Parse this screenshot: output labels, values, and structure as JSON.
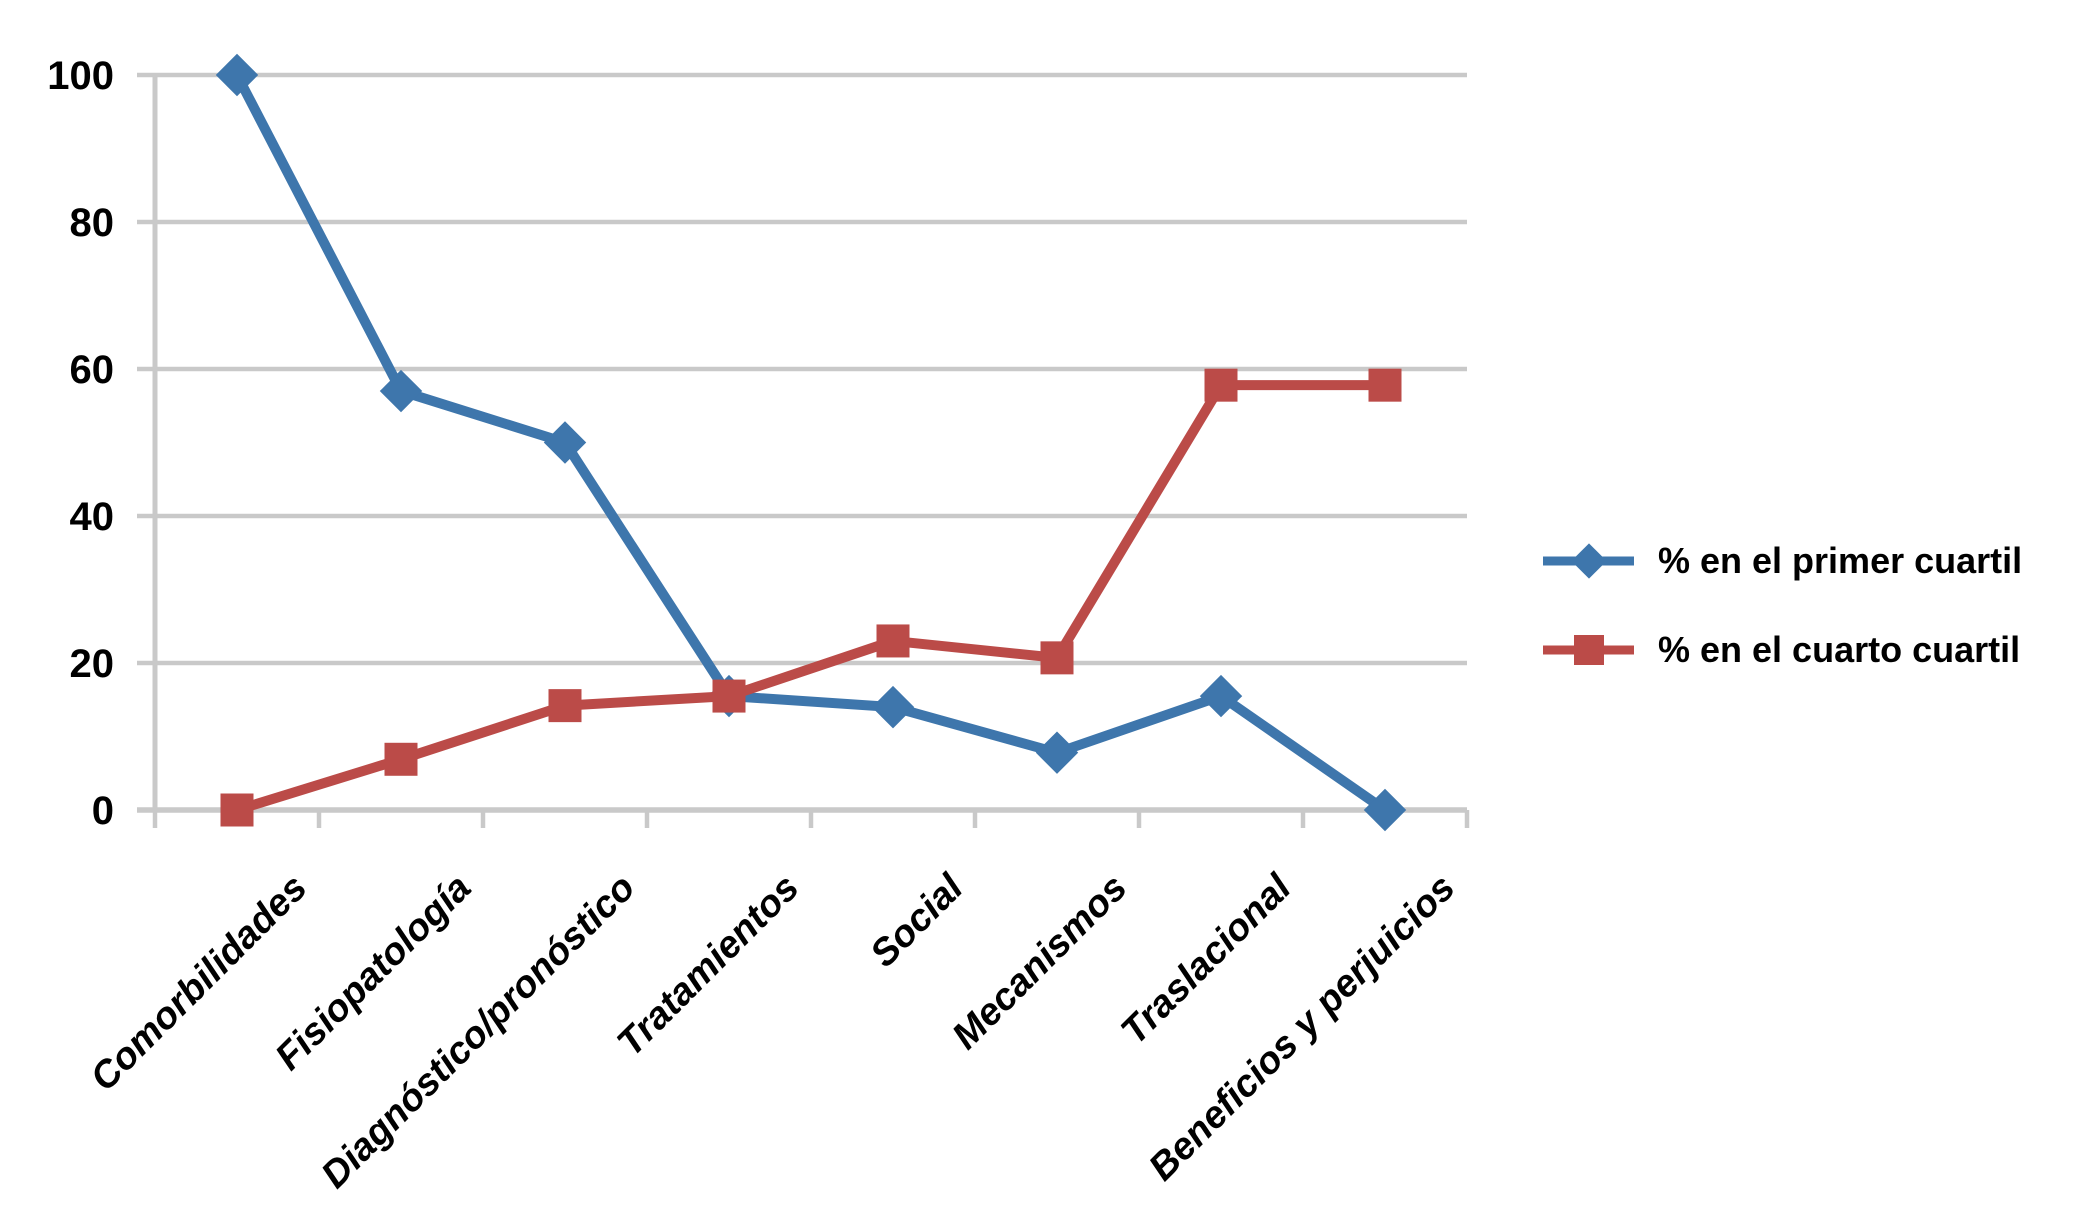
{
  "page": {
    "background_color": "#FFFFFF",
    "text_color": "#000000"
  },
  "chart_data": {
    "type": "line",
    "title": "",
    "xlabel": "",
    "ylabel": "",
    "categories": [
      "Comorbilidades",
      "Fisiopatología",
      "Diagnóstico/pronóstico",
      "Tratamientos",
      "Social",
      "Mecanismos",
      "Traslacional",
      "Beneficios y perjuicios"
    ],
    "series": [
      {
        "name": "% en el primer cuartil",
        "marker": "diamond",
        "color": "#3E76AC",
        "values": [
          100,
          57,
          50,
          15.5,
          14,
          7.8,
          15.5,
          0
        ]
      },
      {
        "name": "% en el cuarto cuartil",
        "marker": "square",
        "color": "#BB4B48",
        "values": [
          0,
          6.9,
          14.2,
          15.5,
          23,
          20.7,
          57.8,
          57.8
        ]
      }
    ],
    "y_ticks": [
      0,
      20,
      40,
      60,
      80,
      100
    ],
    "ylim": [
      0,
      100
    ],
    "grid": "horizontal gridlines on, ticks outside axis, tick marks below x-axis at category boundaries",
    "gridline_color": "#C9C9C9",
    "axis_color": "#C9C9C9",
    "legend_position": "right-middle, no border"
  }
}
